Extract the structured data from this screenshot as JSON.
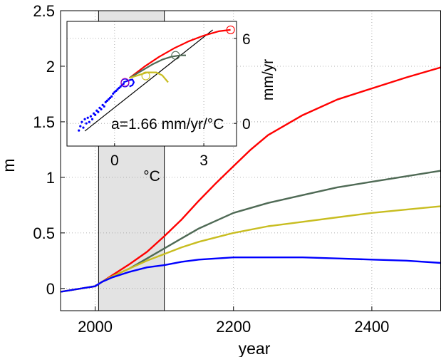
{
  "chart_data": [
    {
      "type": "line",
      "xlabel": "year",
      "ylabel": "m",
      "xlim": [
        1950,
        2500
      ],
      "ylim": [
        -0.2,
        2.5
      ],
      "xticks": [
        "2000",
        "2200",
        "2400"
      ],
      "xtick_values": [
        2000,
        2200,
        2400
      ],
      "yticks": [
        "0",
        "0.5",
        "1",
        "1.5",
        "2",
        "2.5"
      ],
      "ytick_values": [
        0,
        0.5,
        1,
        1.5,
        2,
        2.5
      ],
      "grid": true,
      "shaded_region": {
        "x_start": 2005,
        "x_end": 2100,
        "color": "#e3e3e3"
      },
      "series": [
        {
          "color": "#ff0000",
          "x": [
            1950,
            2000,
            2010,
            2025,
            2050,
            2075,
            2100,
            2125,
            2150,
            2175,
            2200,
            2225,
            2250,
            2300,
            2350,
            2400,
            2450,
            2500
          ],
          "y": [
            -0.03,
            0.02,
            0.06,
            0.12,
            0.22,
            0.33,
            0.47,
            0.62,
            0.79,
            0.95,
            1.1,
            1.25,
            1.38,
            1.56,
            1.7,
            1.8,
            1.9,
            1.99
          ]
        },
        {
          "color": "#4f6a55",
          "x": [
            1950,
            2000,
            2010,
            2025,
            2050,
            2075,
            2100,
            2125,
            2150,
            2175,
            2200,
            2250,
            2300,
            2350,
            2400,
            2450,
            2500
          ],
          "y": [
            -0.03,
            0.02,
            0.06,
            0.11,
            0.18,
            0.27,
            0.36,
            0.45,
            0.54,
            0.61,
            0.68,
            0.77,
            0.84,
            0.91,
            0.96,
            1.01,
            1.06
          ]
        },
        {
          "color": "#c8bd20",
          "x": [
            1950,
            2000,
            2010,
            2025,
            2050,
            2075,
            2100,
            2125,
            2150,
            2175,
            2200,
            2250,
            2300,
            2350,
            2400,
            2450,
            2500
          ],
          "y": [
            -0.03,
            0.02,
            0.06,
            0.11,
            0.18,
            0.25,
            0.31,
            0.37,
            0.42,
            0.46,
            0.5,
            0.56,
            0.6,
            0.64,
            0.68,
            0.71,
            0.74
          ]
        },
        {
          "color": "#0000ff",
          "x": [
            1950,
            2000,
            2010,
            2025,
            2050,
            2075,
            2100,
            2125,
            2150,
            2200,
            2250,
            2300,
            2350,
            2400,
            2450,
            2500
          ],
          "y": [
            -0.03,
            0.02,
            0.06,
            0.1,
            0.15,
            0.19,
            0.21,
            0.24,
            0.26,
            0.28,
            0.28,
            0.28,
            0.27,
            0.26,
            0.25,
            0.23
          ]
        }
      ]
    },
    {
      "type": "scatter",
      "xlabel": "°C",
      "ylabel": "mm/yr",
      "xlim": [
        -1.6,
        4.1
      ],
      "ylim": [
        -1.6,
        7.2
      ],
      "xticks": [
        "0",
        "3"
      ],
      "xtick_values": [
        0,
        3
      ],
      "yticks": [
        "0",
        "6"
      ],
      "ytick_values": [
        0,
        6
      ],
      "grid": true,
      "annotation": "a=1.66 mm/yr/°C",
      "fit_line": {
        "slope": 1.66,
        "color": "#000000",
        "x": [
          -1.0,
          3.3
        ]
      },
      "blue_scatter": {
        "color": "#0000ff",
        "x": [
          -1.2,
          -1.15,
          -1.1,
          -1.05,
          -1.0,
          -0.95,
          -0.9,
          -0.85,
          -0.8,
          -0.75,
          -0.7,
          -0.65,
          -0.6,
          -0.55,
          -0.5,
          -0.45,
          -0.4,
          -0.35,
          -0.3,
          -0.25,
          -0.2,
          -0.15,
          -0.1,
          -0.05,
          0.0,
          0.05,
          0.1,
          0.15,
          0.2,
          0.25,
          0.3
        ],
        "y": [
          -0.5,
          -0.2,
          0.1,
          -0.3,
          0.3,
          0.0,
          0.4,
          0.1,
          0.5,
          0.3,
          0.7,
          0.6,
          0.9,
          0.8,
          1.1,
          1.0,
          1.3,
          1.2,
          1.5,
          1.6,
          1.7,
          1.8,
          1.9,
          2.1,
          2.2,
          2.3,
          2.4,
          2.5,
          2.6,
          2.7,
          2.8
        ]
      },
      "series": [
        {
          "color": "#ff0000",
          "x": [
            0.5,
            1.0,
            1.5,
            2.0,
            2.5,
            3.0,
            3.5,
            3.9
          ],
          "y": [
            3.2,
            4.0,
            4.7,
            5.3,
            5.8,
            6.2,
            6.5,
            6.6
          ],
          "end_marker": [
            3.9,
            6.6
          ]
        },
        {
          "color": "#4f6a55",
          "x": [
            0.5,
            0.9,
            1.3,
            1.6,
            1.9,
            2.2,
            2.4
          ],
          "y": [
            3.2,
            3.7,
            4.2,
            4.5,
            4.7,
            4.8,
            4.8
          ],
          "end_marker": [
            2.05,
            4.8
          ]
        },
        {
          "color": "#c8bd20",
          "x": [
            0.5,
            0.8,
            1.1,
            1.4,
            1.6,
            1.8
          ],
          "y": [
            3.2,
            3.4,
            3.6,
            3.6,
            3.4,
            2.9
          ],
          "end_marker": [
            1.05,
            3.35
          ]
        },
        {
          "color": "#0000ff",
          "x": [
            0.3,
            0.5,
            0.6,
            0.65,
            0.6,
            0.5
          ],
          "y": [
            2.9,
            3.05,
            3.1,
            2.9,
            2.7,
            2.6
          ],
          "end_marker": [
            0.35,
            2.85
          ]
        },
        {
          "color": "#aa00aa",
          "x": [
            0.35
          ],
          "y": [
            2.9
          ],
          "end_marker": [
            0.35,
            2.9
          ]
        }
      ]
    }
  ]
}
